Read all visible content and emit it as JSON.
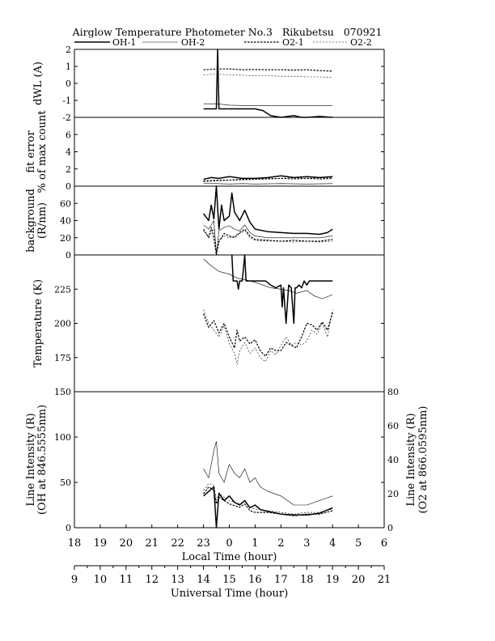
{
  "figure": {
    "title": "Airglow Temperature Photometer No.3   Rikubetsu   070921",
    "legend": [
      {
        "label": "OH-1",
        "style": "solid",
        "weight": "bold"
      },
      {
        "label": "OH-2",
        "style": "solid",
        "weight": "thin"
      },
      {
        "label": "O2-1",
        "style": "dashed",
        "weight": "bold"
      },
      {
        "label": "O2-2",
        "style": "dashed",
        "weight": "thin"
      }
    ],
    "x_local": {
      "label": "Local Time (hour)",
      "ticks": [
        "18",
        "19",
        "20",
        "21",
        "22",
        "23",
        "0",
        "1",
        "2",
        "3",
        "4",
        "5",
        "6"
      ]
    },
    "x_ut": {
      "label": "Universal Time (hour)",
      "ticks": [
        "9",
        "10",
        "11",
        "12",
        "13",
        "14",
        "15",
        "16",
        "17",
        "18",
        "19",
        "20",
        "21"
      ]
    }
  },
  "chart_data": [
    {
      "type": "line",
      "ylabel": "dWL (A)",
      "ylim": [
        -2,
        2
      ],
      "yticks": [
        "-2",
        "-1",
        "0",
        "1",
        "2"
      ],
      "x_unit": "Universal Time (hour)",
      "series": [
        {
          "name": "OH-1",
          "x": [
            14.0,
            14.5,
            14.55,
            14.6,
            15.0,
            15.5,
            16.0,
            16.3,
            16.6,
            17.0,
            17.5,
            17.8,
            18.0,
            18.5,
            19.0
          ],
          "y": [
            -1.5,
            -1.5,
            2.0,
            -1.5,
            -1.5,
            -1.5,
            -1.5,
            -1.6,
            -1.9,
            -2.0,
            -1.9,
            -2.0,
            -2.0,
            -1.95,
            -2.0
          ]
        },
        {
          "name": "OH-2",
          "x": [
            14.0,
            14.5,
            15.0,
            15.5,
            16.0,
            17.0,
            18.0,
            19.0
          ],
          "y": [
            -1.2,
            -1.2,
            -1.28,
            -1.3,
            -1.3,
            -1.3,
            -1.3,
            -1.3
          ]
        },
        {
          "name": "O2-1",
          "x": [
            14.0,
            14.5,
            15.0,
            15.5,
            16.0,
            16.5,
            17.0,
            17.5,
            18.0,
            18.5,
            19.0
          ],
          "y": [
            0.8,
            0.85,
            0.85,
            0.8,
            0.82,
            0.8,
            0.8,
            0.78,
            0.8,
            0.75,
            0.72
          ]
        },
        {
          "name": "O2-2",
          "x": [
            14.0,
            14.5,
            15.0,
            15.5,
            16.0,
            16.5,
            17.0,
            17.5,
            18.0,
            18.5,
            19.0
          ],
          "y": [
            0.5,
            0.55,
            0.5,
            0.48,
            0.45,
            0.45,
            0.42,
            0.42,
            0.38,
            0.38,
            0.35
          ]
        }
      ]
    },
    {
      "type": "line",
      "ylabel": "fit error\n% of max count",
      "ylim": [
        0,
        8
      ],
      "yticks": [
        "0",
        "2",
        "4",
        "6"
      ],
      "x_unit": "Universal Time (hour)",
      "series": [
        {
          "name": "OH-1",
          "x": [
            14.0,
            14.3,
            14.6,
            15.0,
            15.5,
            16.0,
            16.5,
            17.0,
            17.5,
            18.0,
            18.5,
            19.0
          ],
          "y": [
            0.8,
            1.0,
            0.9,
            1.1,
            0.9,
            0.9,
            1.0,
            1.2,
            1.0,
            1.1,
            1.0,
            1.1
          ]
        },
        {
          "name": "OH-2",
          "x": [
            14.0,
            14.5,
            15.0,
            15.5,
            16.0,
            17.0,
            18.0,
            19.0
          ],
          "y": [
            0.3,
            0.3,
            0.25,
            0.3,
            0.25,
            0.3,
            0.25,
            0.3
          ]
        },
        {
          "name": "O2-1",
          "x": [
            14.0,
            14.5,
            15.0,
            15.5,
            16.0,
            16.5,
            17.0,
            17.5,
            18.0,
            18.5,
            19.0
          ],
          "y": [
            0.6,
            0.7,
            0.7,
            0.8,
            0.8,
            0.85,
            0.9,
            0.85,
            0.9,
            0.85,
            0.9
          ]
        },
        {
          "name": "O2-2",
          "x": [
            14.0,
            14.5,
            15.0,
            15.5,
            16.0,
            16.5,
            17.0,
            17.5,
            18.0,
            18.5,
            19.0
          ],
          "y": [
            0.5,
            0.6,
            0.7,
            0.7,
            0.8,
            0.9,
            0.9,
            1.0,
            0.9,
            1.0,
            1.0
          ]
        }
      ]
    },
    {
      "type": "line",
      "ylabel": "background\n(R/nm)",
      "ylim": [
        0,
        80
      ],
      "yticks": [
        "0",
        "20",
        "40",
        "60"
      ],
      "x_unit": "Universal Time (hour)",
      "series": [
        {
          "name": "OH-1",
          "x": [
            14.0,
            14.2,
            14.3,
            14.4,
            14.5,
            14.6,
            14.7,
            14.8,
            15.0,
            15.1,
            15.2,
            15.4,
            15.6,
            15.8,
            16.0,
            16.5,
            17.0,
            17.5,
            18.0,
            18.5,
            18.8,
            19.0
          ],
          "y": [
            48,
            40,
            58,
            42,
            80,
            30,
            58,
            40,
            45,
            72,
            50,
            40,
            52,
            38,
            30,
            27,
            26,
            25,
            25,
            24,
            26,
            30
          ]
        },
        {
          "name": "OH-2",
          "x": [
            14.0,
            14.2,
            14.4,
            14.5,
            14.6,
            14.8,
            15.0,
            15.2,
            15.4,
            15.6,
            15.8,
            16.0,
            16.5,
            17.0,
            17.5,
            18.0,
            18.5,
            19.0
          ],
          "y": [
            35,
            30,
            40,
            0,
            28,
            32,
            34,
            30,
            28,
            35,
            26,
            22,
            20,
            20,
            20,
            20,
            20,
            22
          ]
        },
        {
          "name": "O2-1",
          "x": [
            14.0,
            14.2,
            14.3,
            14.4,
            14.5,
            14.6,
            14.8,
            15.0,
            15.2,
            15.4,
            15.6,
            15.8,
            16.0,
            16.5,
            17.0,
            17.5,
            18.0,
            18.5,
            19.0
          ],
          "y": [
            30,
            20,
            32,
            20,
            0,
            15,
            25,
            22,
            20,
            26,
            30,
            22,
            18,
            17,
            16,
            17,
            16,
            16,
            18
          ]
        },
        {
          "name": "O2-2",
          "x": [
            14.0,
            14.2,
            14.4,
            14.5,
            14.6,
            14.8,
            15.0,
            15.2,
            15.4,
            15.6,
            15.8,
            16.0,
            16.5,
            17.0,
            17.5,
            18.0,
            18.5,
            19.0
          ],
          "y": [
            28,
            22,
            30,
            5,
            18,
            22,
            20,
            22,
            25,
            28,
            20,
            17,
            16,
            16,
            15,
            16,
            15,
            16
          ]
        }
      ]
    },
    {
      "type": "line",
      "ylabel": "Temperature (K)",
      "ylim": [
        150,
        250
      ],
      "yticks": [
        "175",
        "200",
        "225"
      ],
      "x_unit": "Universal Time (hour)",
      "series": [
        {
          "name": "OH-1",
          "x": [
            15.1,
            15.15,
            15.2,
            15.3,
            15.35,
            15.4,
            15.5,
            15.6,
            15.65,
            15.7,
            15.8,
            16.0,
            16.2,
            16.4,
            16.6,
            16.8,
            17.0,
            17.05,
            17.1,
            17.2,
            17.3,
            17.4,
            17.5,
            17.55,
            17.6,
            17.7,
            17.8,
            17.9,
            18.0,
            18.1,
            18.2,
            18.3,
            18.5,
            18.7,
            19.0
          ],
          "y": [
            250,
            231,
            231,
            231,
            225,
            231,
            231,
            250,
            231,
            231,
            231,
            231,
            231,
            231,
            228,
            226,
            228,
            212,
            226,
            200,
            228,
            226,
            200,
            226,
            226,
            228,
            226,
            231,
            228,
            231,
            231,
            231,
            231,
            231,
            231
          ]
        },
        {
          "name": "OH-2",
          "x": [
            14.0,
            14.3,
            14.6,
            15.0,
            15.3,
            15.6,
            16.0,
            16.3,
            16.6,
            17.0,
            17.3,
            17.6,
            18.0,
            18.3,
            18.6,
            19.0
          ],
          "y": [
            247,
            242,
            238,
            236,
            233,
            232,
            230,
            228,
            226,
            225,
            224,
            222,
            224,
            220,
            218,
            221
          ]
        },
        {
          "name": "O2-1",
          "x": [
            14.0,
            14.2,
            14.4,
            14.6,
            14.8,
            15.0,
            15.2,
            15.3,
            15.4,
            15.6,
            15.8,
            16.0,
            16.2,
            16.4,
            16.6,
            16.8,
            17.0,
            17.2,
            17.4,
            17.6,
            17.8,
            18.0,
            18.2,
            18.4,
            18.6,
            18.8,
            19.0
          ],
          "y": [
            207,
            197,
            202,
            193,
            200,
            190,
            182,
            195,
            187,
            190,
            185,
            188,
            180,
            176,
            182,
            180,
            180,
            186,
            184,
            182,
            190,
            200,
            199,
            195,
            201,
            195,
            208
          ]
        },
        {
          "name": "O2-2",
          "x": [
            14.0,
            14.2,
            14.4,
            14.6,
            14.8,
            15.0,
            15.2,
            15.3,
            15.4,
            15.6,
            15.8,
            16.0,
            16.2,
            16.4,
            16.6,
            16.8,
            17.0,
            17.2,
            17.4,
            17.6,
            17.8,
            18.0,
            18.2,
            18.4,
            18.6,
            18.8,
            19.0
          ],
          "y": [
            210,
            200,
            195,
            190,
            198,
            185,
            178,
            170,
            180,
            186,
            178,
            182,
            175,
            172,
            180,
            177,
            184,
            190,
            184,
            186,
            184,
            187,
            195,
            192,
            200,
            190,
            210
          ]
        }
      ]
    },
    {
      "type": "line",
      "ylabel": "Line Intensity (R)\n(OH at 846.5555nm)",
      "y2label": "Line Intensity (R)\n(O2 at 866.0595nm)",
      "ylim": [
        0,
        150
      ],
      "y2lim": [
        0,
        80
      ],
      "yticks": [
        "0",
        "50",
        "100",
        "150"
      ],
      "y2ticks": [
        "0",
        "20",
        "40",
        "60",
        "80"
      ],
      "x_unit": "Universal Time (hour)",
      "series": [
        {
          "name": "OH-1",
          "axis": "left",
          "x": [
            14.0,
            14.2,
            14.4,
            14.5,
            14.6,
            14.8,
            15.0,
            15.2,
            15.4,
            15.6,
            15.8,
            16.0,
            16.2,
            16.5,
            17.0,
            17.5,
            18.0,
            18.5,
            19.0
          ],
          "y": [
            35,
            40,
            45,
            0,
            38,
            30,
            35,
            28,
            25,
            30,
            22,
            25,
            20,
            18,
            15,
            14,
            14,
            16,
            22
          ]
        },
        {
          "name": "OH-2",
          "axis": "left",
          "x": [
            14.0,
            14.2,
            14.4,
            14.5,
            14.6,
            14.8,
            15.0,
            15.2,
            15.4,
            15.6,
            15.8,
            16.0,
            16.2,
            16.5,
            17.0,
            17.5,
            18.0,
            18.5,
            19.0
          ],
          "y": [
            65,
            55,
            85,
            95,
            60,
            50,
            70,
            60,
            55,
            65,
            50,
            55,
            45,
            40,
            35,
            25,
            25,
            30,
            35
          ]
        },
        {
          "name": "O2-1",
          "axis": "right",
          "x": [
            14.0,
            14.2,
            14.4,
            14.5,
            14.6,
            14.8,
            15.0,
            15.2,
            15.4,
            15.6,
            15.8,
            16.0,
            16.5,
            17.0,
            17.5,
            18.0,
            18.5,
            19.0
          ],
          "y": [
            20,
            24,
            22,
            14,
            18,
            16,
            14,
            13,
            12,
            14,
            10,
            9,
            9,
            8,
            7,
            8,
            8,
            10
          ]
        },
        {
          "name": "O2-2",
          "axis": "right",
          "x": [
            14.0,
            14.2,
            14.4,
            14.5,
            14.6,
            14.8,
            15.0,
            15.2,
            15.4,
            15.6,
            15.8,
            16.0,
            16.5,
            17.0,
            17.5,
            18.0,
            18.5,
            19.0
          ],
          "y": [
            22,
            26,
            25,
            16,
            20,
            18,
            16,
            15,
            14,
            16,
            12,
            11,
            10,
            9,
            8,
            9,
            9,
            11
          ]
        }
      ]
    }
  ]
}
